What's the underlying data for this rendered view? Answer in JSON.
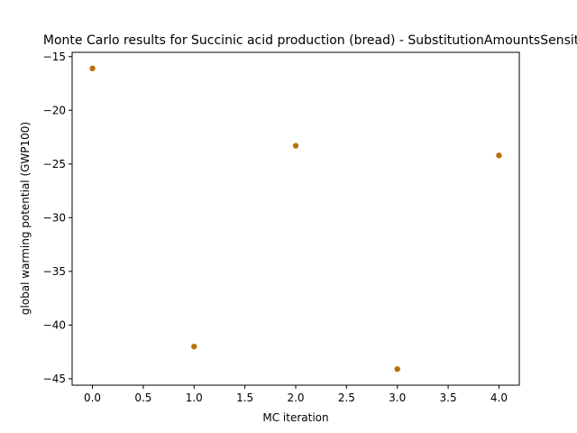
{
  "chart_data": {
    "type": "scatter",
    "title": "Monte Carlo results for Succinic acid production (bread) - SubstitutionAmountsSensitivity",
    "xlabel": "MC iteration",
    "ylabel": "global warming potential (GWP100)",
    "x": [
      0,
      1,
      2,
      3,
      4
    ],
    "y": [
      -16.1,
      -42.0,
      -23.3,
      -44.1,
      -24.2
    ],
    "xlim": [
      -0.2,
      4.2
    ],
    "ylim": [
      -45.6,
      -14.6
    ],
    "xticks": [
      0,
      0.5,
      1,
      1.5,
      2,
      2.5,
      3,
      3.5,
      4
    ],
    "xtick_labels": [
      "0.0",
      "0.5",
      "1.0",
      "1.5",
      "2.0",
      "2.5",
      "3.0",
      "3.5",
      "4.0"
    ],
    "yticks": [
      -15,
      -20,
      -25,
      -30,
      -35,
      -40,
      -45
    ],
    "ytick_labels": [
      "−15",
      "−20",
      "−25",
      "−30",
      "−35",
      "−40",
      "−45"
    ],
    "grid": false,
    "legend": "none",
    "marker_color": "#b8720a"
  }
}
